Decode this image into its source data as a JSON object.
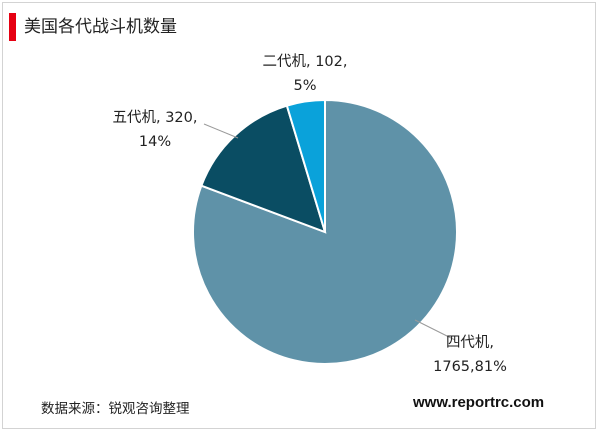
{
  "title": "美国各代战斗机数量",
  "source": "数据来源：锐观咨询整理",
  "website": "www.reportrc.com",
  "chart_data": {
    "type": "pie",
    "title": "美国各代战斗机数量",
    "slices": [
      {
        "name": "四代机",
        "value": 1765,
        "percent": 81,
        "color": "#5f92a8",
        "label_lines": [
          "四代机,",
          "1765,81%"
        ]
      },
      {
        "name": "五代机",
        "value": 320,
        "percent": 14,
        "color": "#0a4d63",
        "label_lines": [
          "五代机, 320,",
          "14%"
        ]
      },
      {
        "name": "二代机",
        "value": 102,
        "percent": 5,
        "color": "#0aa2da",
        "label_lines": [
          "二代机, 102,",
          "5%"
        ]
      }
    ]
  }
}
